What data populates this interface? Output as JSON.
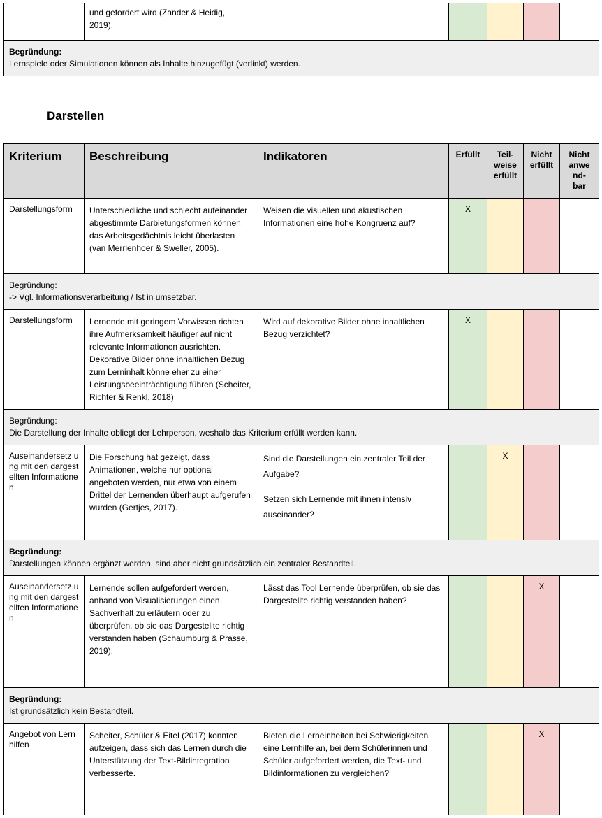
{
  "top_row": {
    "description": "und gefordert wird (Zander & Heidig,\n2019)."
  },
  "top_reason": {
    "label": "Begründung:",
    "label_bold": true,
    "text": "Lernspiele oder Simulationen können als Inhalte hinzugefügt (verlinkt) werden."
  },
  "heading": "Darstellen",
  "table": {
    "headers": [
      "Kriterium",
      "Beschreibung",
      "Indikatoren",
      "Erfüllt",
      "Teil-\nweise\nerfüllt",
      "Nicht\nerfüllt",
      "Nicht\nanwe\nnd-\nbar"
    ],
    "rows": [
      {
        "criterion": "Darstellungsform",
        "description": "Unterschiedliche und schlecht aufeinander abgestimmte Darbietungsformen können das Arbeitsgedächtnis leicht überlasten (van Merrienhoer & Sweller, 2005).",
        "indicators": [
          "Weisen die visuellen und akustischen Informationen eine hohe Kongruenz auf?"
        ],
        "ratings": [
          "X",
          null,
          null,
          null
        ],
        "reason": {
          "label": "Begründung:",
          "label_bold": false,
          "text": "-> Vgl. Informationsverarbeitung / Ist in umsetzbar."
        }
      },
      {
        "criterion": "Darstellungsform",
        "description": "Lernende mit geringem Vorwissen richten ihre Aufmerksamkeit häufiger auf nicht relevante Informationen ausrichten. Dekorative Bilder ohne inhaltlichen Bezug zum Lerninhalt könne eher zu einer Leistungsbeeinträchtigung führen (Scheiter, Richter & Renkl, 2018)",
        "indicators": [
          "Wird auf  dekorative Bilder ohne inhaltlichen Bezug verzichtet?"
        ],
        "ratings": [
          "X",
          null,
          null,
          null
        ],
        "reason": {
          "label": "Begründung:",
          "label_bold": false,
          "text": "Die Darstellung der Inhalte obliegt der Lehrperson, weshalb das Kriterium erfüllt werden kann."
        }
      },
      {
        "criterion": "Auseinandersetz ung mit den dargestellten Informationen",
        "description": "Die Forschung hat gezeigt, dass Animationen, welche nur optional angeboten werden, nur etwa von einem Drittel der Lernenden überhaupt aufgerufen wurden (Gertjes, 2017).",
        "indicators": [
          "Sind die Darstellungen ein zentraler Teil der Aufgabe?",
          "Setzen sich Lernende mit ihnen intensiv auseinander?"
        ],
        "ratings": [
          null,
          "X",
          null,
          null
        ],
        "reason": {
          "label": "Begründung:",
          "label_bold": true,
          "text": "Darstellungen können ergänzt werden, sind aber nicht grundsätzlich ein zentraler Bestandteil."
        }
      },
      {
        "criterion": "Auseinandersetz ung mit den dargestellten Informationen",
        "description": "Lernende sollen aufgefordert werden, anhand von Visualisierungen einen Sachverhalt zu erläutern oder zu überprüfen, ob sie das Dargestellte richtig verstanden haben (Schaumburg & Prasse, 2019).",
        "indicators": [
          "Lässt das Tool Lernende überprüfen, ob sie das Dargestellte richtig verstanden haben?"
        ],
        "ratings": [
          null,
          null,
          "X",
          null
        ],
        "reason": {
          "label": "Begründung:",
          "label_bold": true,
          "text": "Ist grundsätzlich kein Bestandteil."
        }
      },
      {
        "criterion": "Angebot von Lernhilfen",
        "description": "Scheiter, Schüler & Eitel (2017) konnten aufzeigen, dass sich das Lernen durch die Unterstützung der Text-Bildintegration verbesserte.",
        "indicators": [
          "Bieten die Lerneinheiten bei Schwierigkeiten eine Lernhilfe an, bei dem Schülerinnen und Schüler aufgefordert werden, die Text- und Bildinformationen zu vergleichen?"
        ],
        "ratings": [
          null,
          null,
          "X",
          null
        ]
      }
    ]
  }
}
